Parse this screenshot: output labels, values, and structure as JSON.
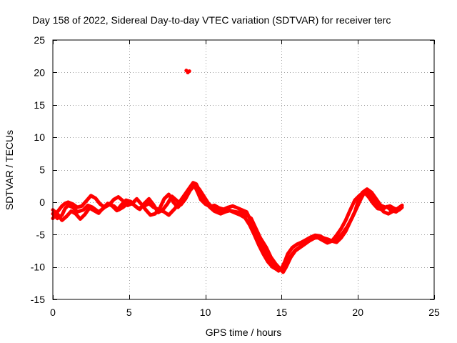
{
  "chart_data": {
    "type": "line",
    "title": "Day 158 of 2022, Sidereal Day-to-day VTEC variation (SDTVAR) for receiver terc",
    "xlabel": "GPS time / hours",
    "ylabel": "SDTVAR / TECUs",
    "xlim": [
      0,
      25
    ],
    "ylim": [
      -15,
      25
    ],
    "xticks": [
      0,
      5,
      10,
      15,
      20,
      25
    ],
    "yticks": [
      -15,
      -10,
      -5,
      0,
      5,
      10,
      15,
      20,
      25
    ],
    "grid": true,
    "line_color": "#ff0000",
    "series": [
      {
        "name": "SDTVAR trace 1",
        "x": [
          0.0,
          0.3,
          0.6,
          0.8,
          1.0,
          1.3,
          1.6,
          2.0,
          2.3,
          2.6,
          3.0,
          3.3,
          3.6,
          4.0,
          4.3,
          4.6,
          5.0,
          5.3,
          5.6,
          6.0,
          6.3,
          6.6,
          7.0,
          7.3,
          7.6,
          8.0,
          8.3,
          8.6,
          8.9,
          9.2,
          9.4,
          9.6,
          9.8,
          10.0,
          10.3,
          10.6,
          11.0,
          11.3,
          11.6,
          12.0,
          12.3,
          12.6,
          13.0,
          13.3,
          13.6,
          14.0,
          14.3,
          14.6,
          14.9,
          15.1,
          15.3,
          15.6,
          15.9,
          16.2,
          16.5,
          16.8,
          17.1,
          17.4,
          17.7,
          18.0,
          18.3,
          18.6,
          18.9,
          19.2,
          19.5,
          19.8,
          20.0,
          20.3,
          20.6,
          20.9,
          21.2,
          21.5,
          21.8,
          22.1,
          22.4,
          22.7,
          22.9
        ],
        "y": [
          -1.8,
          -2.5,
          -2.0,
          -1.0,
          -0.5,
          -0.8,
          -1.5,
          -1.2,
          -0.5,
          -0.8,
          -1.5,
          -1.0,
          -0.3,
          -0.6,
          -1.2,
          -0.8,
          0.0,
          -0.4,
          -1.0,
          -0.6,
          -0.2,
          -0.8,
          -1.2,
          -1.5,
          -2.0,
          -1.0,
          0.0,
          1.0,
          2.0,
          3.0,
          2.8,
          1.8,
          0.8,
          0.0,
          -0.8,
          -1.4,
          -1.8,
          -1.5,
          -1.3,
          -1.5,
          -1.6,
          -1.8,
          -2.5,
          -4.0,
          -5.5,
          -7.0,
          -8.5,
          -9.5,
          -10.3,
          -10.8,
          -10.0,
          -8.5,
          -7.5,
          -7.0,
          -6.5,
          -6.0,
          -5.6,
          -5.3,
          -5.5,
          -5.7,
          -6.0,
          -6.2,
          -5.5,
          -4.5,
          -3.0,
          -1.5,
          0.0,
          1.5,
          2.0,
          1.5,
          0.5,
          -0.5,
          -0.8,
          -0.6,
          -1.0,
          -1.2,
          -0.8
        ]
      },
      {
        "name": "SDTVAR trace 2",
        "x": [
          0.0,
          0.2,
          0.4,
          0.6,
          0.8,
          1.0,
          1.3,
          1.6,
          1.9,
          2.2,
          2.5,
          2.8,
          3.1,
          3.4,
          3.7,
          4.0,
          4.3,
          4.6,
          4.9,
          5.2,
          5.5,
          5.8,
          6.1,
          6.4,
          6.7,
          7.0,
          7.3,
          7.6,
          7.9,
          8.2,
          8.5,
          8.8,
          9.1,
          9.3,
          9.5,
          9.7,
          10.0,
          10.3,
          10.6,
          10.9,
          11.2,
          11.5,
          11.8,
          12.1,
          12.4,
          12.7,
          13.0,
          13.3,
          13.6,
          13.9,
          14.2,
          14.5,
          14.8,
          15.0,
          15.2,
          15.4,
          15.7,
          16.0,
          16.3,
          16.6,
          16.9,
          17.2,
          17.5,
          17.8,
          18.1,
          18.4,
          18.7,
          19.0,
          19.3,
          19.6,
          19.9,
          20.2,
          20.5,
          20.8,
          21.1,
          21.4,
          21.7,
          22.0,
          22.3,
          22.6,
          22.9
        ],
        "y": [
          -2.5,
          -1.8,
          -1.2,
          -0.6,
          -0.2,
          0.0,
          -0.3,
          -0.8,
          -0.6,
          0.2,
          1.0,
          0.6,
          -0.3,
          -0.8,
          -0.4,
          0.4,
          0.8,
          0.2,
          -0.5,
          -0.2,
          0.5,
          -0.3,
          -1.2,
          -2.0,
          -1.8,
          -1.0,
          0.5,
          1.2,
          0.0,
          -0.8,
          0.0,
          1.2,
          2.4,
          2.5,
          1.5,
          0.4,
          -0.3,
          -0.7,
          -0.5,
          -0.9,
          -1.1,
          -0.8,
          -0.6,
          -0.9,
          -1.2,
          -1.5,
          -3.0,
          -4.6,
          -6.0,
          -7.6,
          -9.0,
          -10.0,
          -10.6,
          -10.2,
          -9.2,
          -8.0,
          -7.0,
          -6.5,
          -6.2,
          -5.8,
          -5.4,
          -5.1,
          -5.2,
          -5.6,
          -5.9,
          -6.0,
          -5.6,
          -4.8,
          -3.8,
          -2.5,
          -1.0,
          0.5,
          1.8,
          1.2,
          0.2,
          -0.8,
          -1.5,
          -1.8,
          -1.4,
          -1.0,
          -0.5
        ]
      },
      {
        "name": "SDTVAR trace 3",
        "x": [
          0.0,
          0.3,
          0.6,
          0.9,
          1.2,
          1.5,
          1.8,
          2.1,
          2.4,
          2.7,
          3.0,
          3.3,
          3.6,
          3.9,
          4.2,
          4.5,
          4.8,
          5.1,
          5.4,
          5.7,
          6.0,
          6.3,
          6.6,
          6.9,
          7.2,
          7.5,
          7.8,
          8.1,
          8.4,
          8.7,
          9.0,
          9.3,
          9.6,
          9.9,
          10.2,
          10.5,
          10.8,
          11.1,
          11.4,
          11.7,
          12.0,
          12.3,
          12.6,
          12.9,
          13.2,
          13.5,
          13.8,
          14.1,
          14.4,
          14.7,
          15.0,
          15.3,
          15.6,
          15.9,
          16.2,
          16.5,
          16.8,
          17.1,
          17.4,
          17.7,
          18.0,
          18.3,
          18.6,
          18.9,
          19.2,
          19.5,
          19.8,
          20.1,
          20.4,
          20.7,
          21.0,
          21.3,
          21.6,
          21.9,
          22.2,
          22.5,
          22.8
        ],
        "y": [
          -1.2,
          -1.8,
          -2.8,
          -2.2,
          -1.4,
          -1.8,
          -2.6,
          -1.9,
          -0.9,
          -1.3,
          -1.7,
          -0.9,
          -0.2,
          -0.6,
          -1.3,
          -0.4,
          0.3,
          0.1,
          -0.6,
          -1.1,
          -0.2,
          0.5,
          -0.4,
          -1.6,
          -1.2,
          -0.3,
          0.9,
          0.3,
          -0.4,
          0.5,
          1.8,
          2.6,
          2.0,
          0.9,
          -0.2,
          -0.9,
          -1.3,
          -1.2,
          -1.0,
          -1.4,
          -1.7,
          -2.0,
          -2.4,
          -3.5,
          -5.0,
          -6.6,
          -8.0,
          -9.2,
          -10.0,
          -10.4,
          -10.5,
          -9.4,
          -8.3,
          -7.4,
          -6.9,
          -6.4,
          -5.8,
          -5.5,
          -5.5,
          -5.9,
          -6.3,
          -6.0,
          -5.1,
          -4.1,
          -2.8,
          -1.2,
          0.3,
          1.0,
          1.6,
          0.8,
          -0.2,
          -1.0,
          -1.1,
          -0.7,
          -1.3,
          -1.5,
          -1.0
        ]
      }
    ],
    "outlier_points": [
      {
        "x": 8.75,
        "y": 20.3
      },
      {
        "x": 8.85,
        "y": 20.0
      },
      {
        "x": 8.95,
        "y": 20.2
      }
    ]
  }
}
